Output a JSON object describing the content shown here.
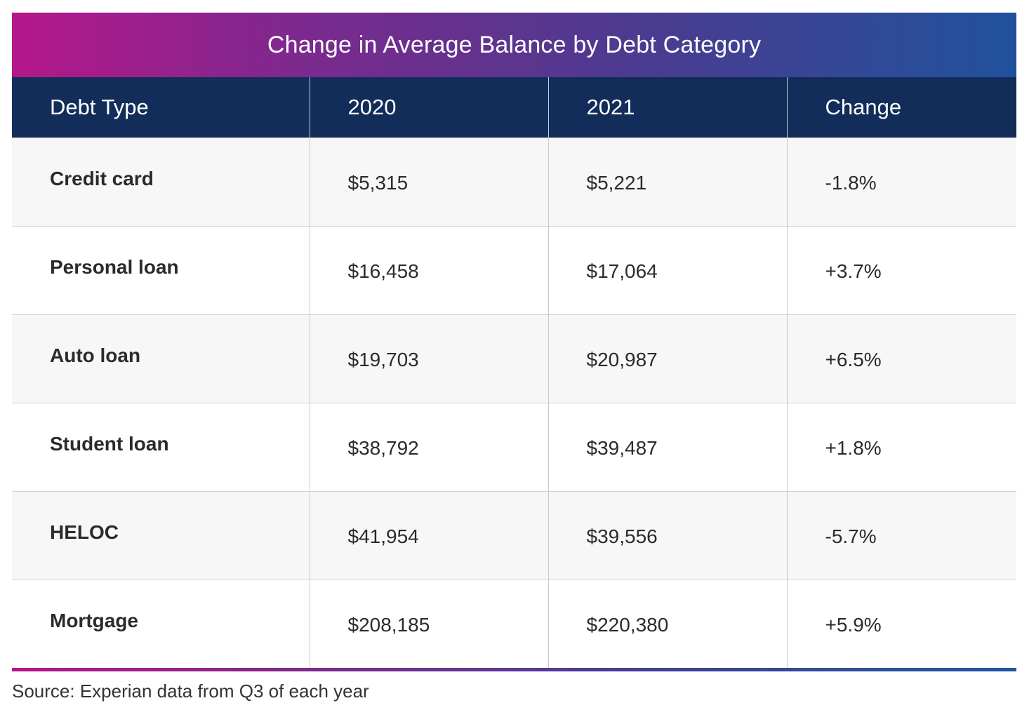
{
  "chart_data": {
    "type": "table",
    "title": "Change in Average Balance by Debt Category",
    "columns": [
      "Debt Type",
      "2020",
      "2021",
      "Change"
    ],
    "rows": [
      {
        "debt_type": "Credit card",
        "y2020": "$5,315",
        "y2021": "$5,221",
        "change": "-1.8%"
      },
      {
        "debt_type": "Personal loan",
        "y2020": "$16,458",
        "y2021": "$17,064",
        "change": "+3.7%"
      },
      {
        "debt_type": "Auto loan",
        "y2020": "$19,703",
        "y2021": "$20,987",
        "change": "+6.5%"
      },
      {
        "debt_type": "Student loan",
        "y2020": "$38,792",
        "y2021": "$39,487",
        "change": "+1.8%"
      },
      {
        "debt_type": "HELOC",
        "y2020": "$41,954",
        "y2021": "$39,556",
        "change": "-5.7%"
      },
      {
        "debt_type": "Mortgage",
        "y2020": "$208,185",
        "y2021": "$220,380",
        "change": "+5.9%"
      }
    ],
    "source": "Source: Experian data from Q3 of each year"
  },
  "colors": {
    "header_bg": "#132d5a",
    "gradient_start": "#b5178a",
    "gradient_end": "#20519c",
    "row_alt_bg": "#f7f7f7"
  }
}
